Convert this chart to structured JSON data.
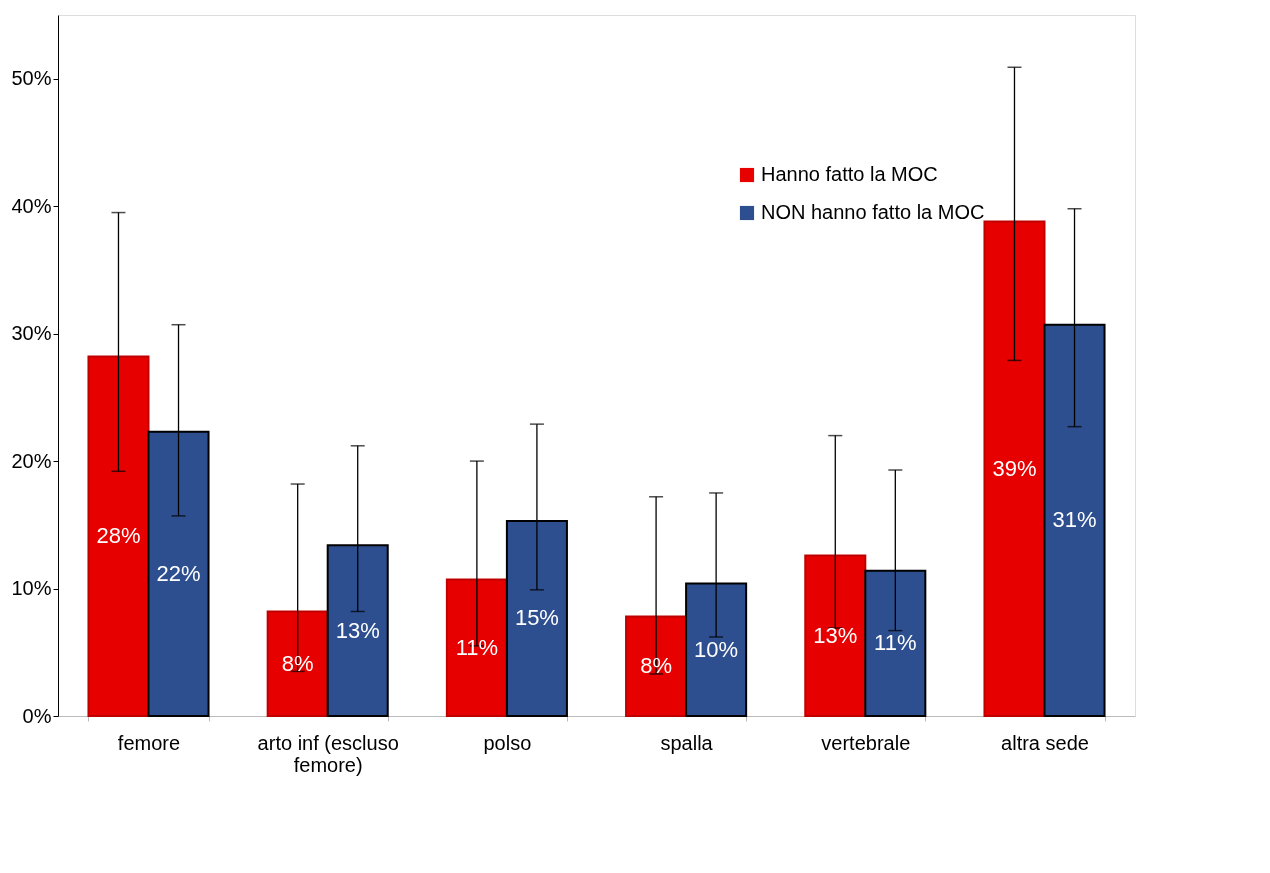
{
  "chart_data": {
    "type": "bar",
    "categories": [
      "femore",
      "arto inf (escluso femore)",
      "polso",
      "spalla",
      "vertebrale",
      "altra sede"
    ],
    "series": [
      {
        "name": "Hanno fatto la MOC",
        "color": "#e60000",
        "values": [
          28.2,
          8.2,
          10.7,
          7.8,
          12.6,
          38.8
        ],
        "errors": [
          [
            19.2,
            39.5
          ],
          [
            3.5,
            18.2
          ],
          [
            5.5,
            20.0
          ],
          [
            3.3,
            17.2
          ],
          [
            6.9,
            22.0
          ],
          [
            27.9,
            50.9
          ]
        ],
        "value_labels": [
          "28%",
          "8%",
          "11%",
          "8%",
          "13%",
          "39%"
        ]
      },
      {
        "name": "NON hanno fatto la MOC",
        "color": "#2e4f8f",
        "values": [
          22.3,
          13.4,
          15.3,
          10.4,
          11.4,
          30.7
        ],
        "errors": [
          [
            15.7,
            30.7
          ],
          [
            8.2,
            21.2
          ],
          [
            9.9,
            22.9
          ],
          [
            6.2,
            17.5
          ],
          [
            6.7,
            19.3
          ],
          [
            22.7,
            39.8
          ]
        ],
        "value_labels": [
          "22%",
          "13%",
          "15%",
          "10%",
          "11%",
          "31%"
        ]
      }
    ],
    "ylim": [
      0,
      55
    ],
    "yticks": [
      {
        "value": 0,
        "label": "0%"
      },
      {
        "value": 10,
        "label": "10%"
      },
      {
        "value": 20,
        "label": "20%"
      },
      {
        "value": 30,
        "label": "30%"
      },
      {
        "value": 40,
        "label": "40%"
      },
      {
        "value": 50,
        "label": "50%"
      }
    ],
    "grid": false,
    "legend": "top right"
  }
}
